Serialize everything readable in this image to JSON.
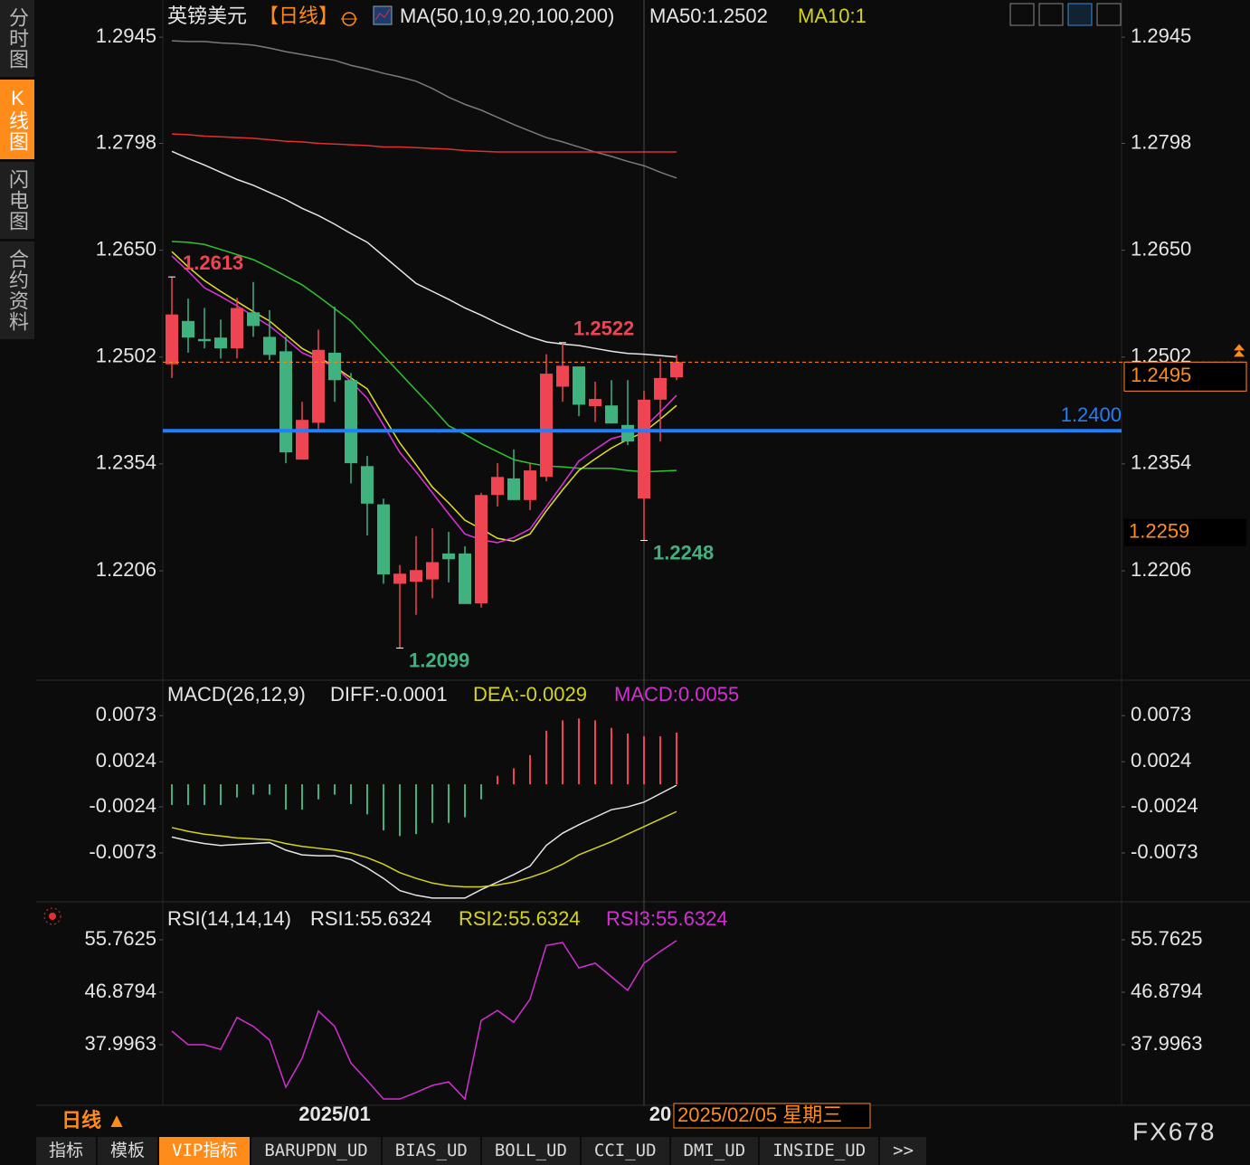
{
  "chart_data": [
    {
      "type": "candlestick",
      "header": [
        {
          "text": "英镑美元",
          "color": "#e6e6e6"
        },
        {
          "text": "【日线】",
          "color": "#ff8c1a"
        },
        {
          "text": "MA(50,10,9,20,100,200)",
          "color": "#e6e6e6"
        },
        {
          "text": "MA50:1.2502",
          "color": "#e6e6e6"
        },
        {
          "text": "MA10:1",
          "color": "#d4d41e"
        }
      ],
      "categories": [
        null,
        null,
        null,
        null,
        null,
        null,
        null,
        null,
        null,
        null,
        "2025/01",
        null,
        null,
        null,
        null,
        null,
        null,
        null,
        null,
        null,
        null,
        null,
        null,
        null,
        null,
        null,
        null,
        null,
        null,
        null,
        "20",
        null
      ],
      "candles": {
        "open": [
          1.2492,
          1.2552,
          1.2527,
          1.2529,
          1.2514,
          1.2564,
          1.253,
          1.251,
          1.236,
          1.2411,
          1.2508,
          1.247,
          1.2351,
          1.2298,
          1.2188,
          1.2191,
          1.2194,
          1.223,
          1.223,
          1.2161,
          1.2311,
          1.2334,
          1.2304,
          1.2336,
          1.2461,
          1.2489,
          1.2434,
          1.2435,
          1.2408,
          1.2306,
          1.2443,
          1.2474
        ],
        "high": [
          1.2613,
          1.2583,
          1.257,
          1.2554,
          1.2584,
          1.2606,
          1.2567,
          1.253,
          1.244,
          1.254,
          1.2572,
          1.248,
          1.2365,
          1.2306,
          1.2214,
          1.2254,
          1.2265,
          1.226,
          1.224,
          1.2314,
          1.2355,
          1.2374,
          1.2355,
          1.2506,
          1.2522,
          1.2489,
          1.2468,
          1.247,
          1.247,
          1.2455,
          1.25,
          1.2505
        ],
        "low": [
          1.2473,
          1.2508,
          1.2514,
          1.25,
          1.25,
          1.253,
          1.2498,
          1.2355,
          1.236,
          1.24,
          1.244,
          1.2327,
          1.2255,
          1.2188,
          1.2099,
          1.2145,
          1.2168,
          1.219,
          1.216,
          1.2155,
          1.2295,
          1.2304,
          1.229,
          1.233,
          1.244,
          1.242,
          1.2412,
          1.241,
          1.238,
          1.2248,
          1.2385,
          1.247
        ],
        "close": [
          1.2561,
          1.2529,
          1.2524,
          1.2514,
          1.257,
          1.2545,
          1.2505,
          1.237,
          1.2415,
          1.2512,
          1.247,
          1.2355,
          1.2299,
          1.2201,
          1.2202,
          1.2207,
          1.2218,
          1.2222,
          1.216,
          1.2311,
          1.2336,
          1.2304,
          1.2345,
          1.2479,
          1.249,
          1.2436,
          1.2444,
          1.241,
          1.2385,
          1.2443,
          1.2473,
          1.2495
        ],
        "up_color": "#ef4452",
        "down_color": "#3fb27f"
      },
      "ma_lines": [
        {
          "color": "#7a7a7a",
          "values": [
            1.294,
            1.2939,
            1.2939,
            1.2937,
            1.2936,
            1.2934,
            1.293,
            1.2925,
            1.2921,
            1.2917,
            1.2913,
            1.2906,
            1.2901,
            1.2895,
            1.289,
            1.2884,
            1.2874,
            1.2862,
            1.2852,
            1.2844,
            1.2834,
            1.2824,
            1.2815,
            1.2806,
            1.28,
            1.2793,
            1.2786,
            1.278,
            1.2773,
            1.2767,
            1.2758,
            1.275
          ]
        },
        {
          "color": "#e03030",
          "values": [
            1.2811,
            1.281,
            1.2808,
            1.2807,
            1.2806,
            1.2805,
            1.2803,
            1.2801,
            1.28,
            1.2798,
            1.2797,
            1.2796,
            1.2795,
            1.2793,
            1.2793,
            1.2792,
            1.2791,
            1.279,
            1.2788,
            1.2787,
            1.2786,
            1.2786,
            1.2786,
            1.2786,
            1.2786,
            1.2786,
            1.2786,
            1.2786,
            1.2786,
            1.2786,
            1.2786,
            1.2786
          ]
        },
        {
          "color": "#e6e6e6",
          "values": [
            1.2787,
            1.2777,
            1.2768,
            1.2758,
            1.2748,
            1.274,
            1.273,
            1.272,
            1.2708,
            1.2698,
            1.2686,
            1.2673,
            1.2661,
            1.2642,
            1.2623,
            1.2604,
            1.2593,
            1.2582,
            1.257,
            1.256,
            1.2549,
            1.2539,
            1.253,
            1.2523,
            1.252,
            1.2518,
            1.2514,
            1.251,
            1.2507,
            1.2506,
            1.2504,
            1.2502
          ]
        },
        {
          "color": "#2ec52e",
          "values": [
            1.2662,
            1.2661,
            1.2658,
            1.2651,
            1.2644,
            1.2637,
            1.2626,
            1.2614,
            1.2602,
            1.2586,
            1.2569,
            1.2552,
            1.2528,
            1.2504,
            1.248,
            1.2456,
            1.2432,
            1.2407,
            1.2395,
            1.2382,
            1.2371,
            1.236,
            1.2355,
            1.2351,
            1.235,
            1.2348,
            1.2348,
            1.2348,
            1.2345,
            1.2343,
            1.2344,
            1.2345
          ]
        },
        {
          "color": "#e0e020",
          "values": [
            1.2648,
            1.2627,
            1.2608,
            1.2593,
            1.2579,
            1.2565,
            1.2552,
            1.2533,
            1.2514,
            1.2502,
            1.2489,
            1.2473,
            1.2458,
            1.242,
            1.2383,
            1.2353,
            1.2322,
            1.23,
            1.2276,
            1.2264,
            1.2251,
            1.2247,
            1.2257,
            1.2289,
            1.2318,
            1.2345,
            1.2361,
            1.2376,
            1.2388,
            1.2398,
            1.2416,
            1.2435
          ]
        },
        {
          "color": "#e030e0",
          "values": [
            1.2642,
            1.2621,
            1.2598,
            1.2586,
            1.2573,
            1.2559,
            1.2545,
            1.2527,
            1.2508,
            1.2498,
            1.2489,
            1.2468,
            1.2445,
            1.2408,
            1.237,
            1.2343,
            1.2314,
            1.2285,
            1.2257,
            1.2249,
            1.2245,
            1.2252,
            1.2264,
            1.2295,
            1.2326,
            1.2358,
            1.2374,
            1.2389,
            1.2395,
            1.2404,
            1.2426,
            1.2449
          ]
        }
      ],
      "high_labels": [
        1.2613,
        1.2522
      ],
      "high_label_color": "#ef4452",
      "low_labels": [
        1.2099,
        1.2248
      ],
      "low_label_color": "#3fb27f",
      "support_line": {
        "value": 1.24,
        "label": "1.2400",
        "color": "#1e7fff"
      },
      "last_price": 1.2495,
      "last_price_color": "#ff8c1a",
      "cursor_price": 1.2259,
      "cursor_date": "2025/02/05 星期三",
      "ylim": [
        1.2057,
        1.2984
      ],
      "yticks": [
        1.2945,
        1.2798,
        {
          "value": 1.265,
          "label": "1.2650"
        },
        1.2502,
        1.2354,
        1.2206
      ]
    },
    {
      "type": "macd",
      "header": [
        {
          "text": "MACD(26,12,9)",
          "color": "#e6e6e6"
        },
        {
          "text": "DIFF:-0.0001",
          "color": "#e6e6e6"
        },
        {
          "text": "DEA:-0.0029",
          "color": "#d4d41e"
        },
        {
          "text": "MACD:0.0055",
          "color": "#d42fd4"
        }
      ],
      "histogram": [
        -0.0022,
        -0.0022,
        -0.0022,
        -0.0022,
        -0.0014,
        -0.0011,
        -0.0011,
        -0.0027,
        -0.0027,
        -0.0016,
        -0.0011,
        -0.0021,
        -0.0032,
        -0.0049,
        -0.0055,
        -0.0053,
        -0.0041,
        -0.0041,
        -0.0035,
        -0.0016,
        0.0009,
        0.0017,
        0.0031,
        0.0057,
        0.0068,
        0.007,
        0.0068,
        0.006,
        0.0054,
        0.0051,
        0.0051,
        0.0055
      ],
      "up_color": "#ef4452",
      "down_color": "#3fb27f",
      "series": [
        {
          "color": "#e6e6e6",
          "values": [
            -0.0056,
            -0.006,
            -0.0063,
            -0.0065,
            -0.0064,
            -0.0063,
            -0.0062,
            -0.007,
            -0.0075,
            -0.0076,
            -0.0076,
            -0.008,
            -0.0089,
            -0.01,
            -0.0113,
            -0.0118,
            -0.0121,
            -0.0121,
            -0.0121,
            -0.0112,
            -0.0104,
            -0.0096,
            -0.0087,
            -0.0065,
            -0.0052,
            -0.0043,
            -0.0035,
            -0.0027,
            -0.0024,
            -0.0019,
            -0.001,
            -0.0001
          ]
        },
        {
          "color": "#d4d41e",
          "values": [
            -0.0046,
            -0.005,
            -0.0053,
            -0.0055,
            -0.0057,
            -0.0058,
            -0.0059,
            -0.0063,
            -0.0066,
            -0.0068,
            -0.007,
            -0.0073,
            -0.0078,
            -0.0085,
            -0.0094,
            -0.01,
            -0.0105,
            -0.0108,
            -0.0109,
            -0.0109,
            -0.0107,
            -0.0104,
            -0.0099,
            -0.0093,
            -0.0085,
            -0.0075,
            -0.0068,
            -0.0061,
            -0.0053,
            -0.0045,
            -0.0037,
            -0.0029
          ]
        }
      ],
      "ylim": [
        -0.0123,
        0.0103
      ],
      "yticks": [
        0.0073,
        0.0024,
        -0.0024,
        -0.0073
      ]
    },
    {
      "type": "line",
      "header": [
        {
          "text": "RSI(14,14,14)",
          "color": "#e6e6e6"
        },
        {
          "text": "RSI1:55.6324",
          "color": "#e6e6e6"
        },
        {
          "text": "RSI2:55.6324",
          "color": "#d4d41e"
        },
        {
          "text": "RSI3:55.6324",
          "color": "#d42fd4"
        }
      ],
      "series": [
        {
          "color": "#d42fd4",
          "values": [
            40.3,
            38.0,
            38.0,
            37.2,
            42.6,
            41.1,
            38.8,
            30.8,
            35.7,
            43.7,
            41.1,
            34.9,
            31.9,
            28.8,
            28.8,
            29.9,
            31.1,
            31.7,
            28.8,
            42.1,
            43.8,
            41.8,
            45.7,
            54.8,
            55.3,
            51.0,
            51.8,
            49.5,
            47.2,
            51.8,
            53.8,
            55.6324
          ]
        }
      ],
      "ylim": [
        28.04,
        60.97
      ],
      "yticks": [
        55.7625,
        46.8794,
        37.9963
      ]
    }
  ],
  "ui": {
    "sidebar": [
      "分时图",
      "K线图",
      "闪电图",
      "合约资料"
    ],
    "tabs": [
      "指标",
      "模板",
      "VIP指标",
      "BARUPDN_UD",
      "BIAS_UD",
      "BOLL_UD",
      "CCI_UD",
      "DMI_UD",
      "INSIDE_UD",
      ">>"
    ],
    "period_label": "日线 ▲",
    "watermark": "FX678"
  }
}
